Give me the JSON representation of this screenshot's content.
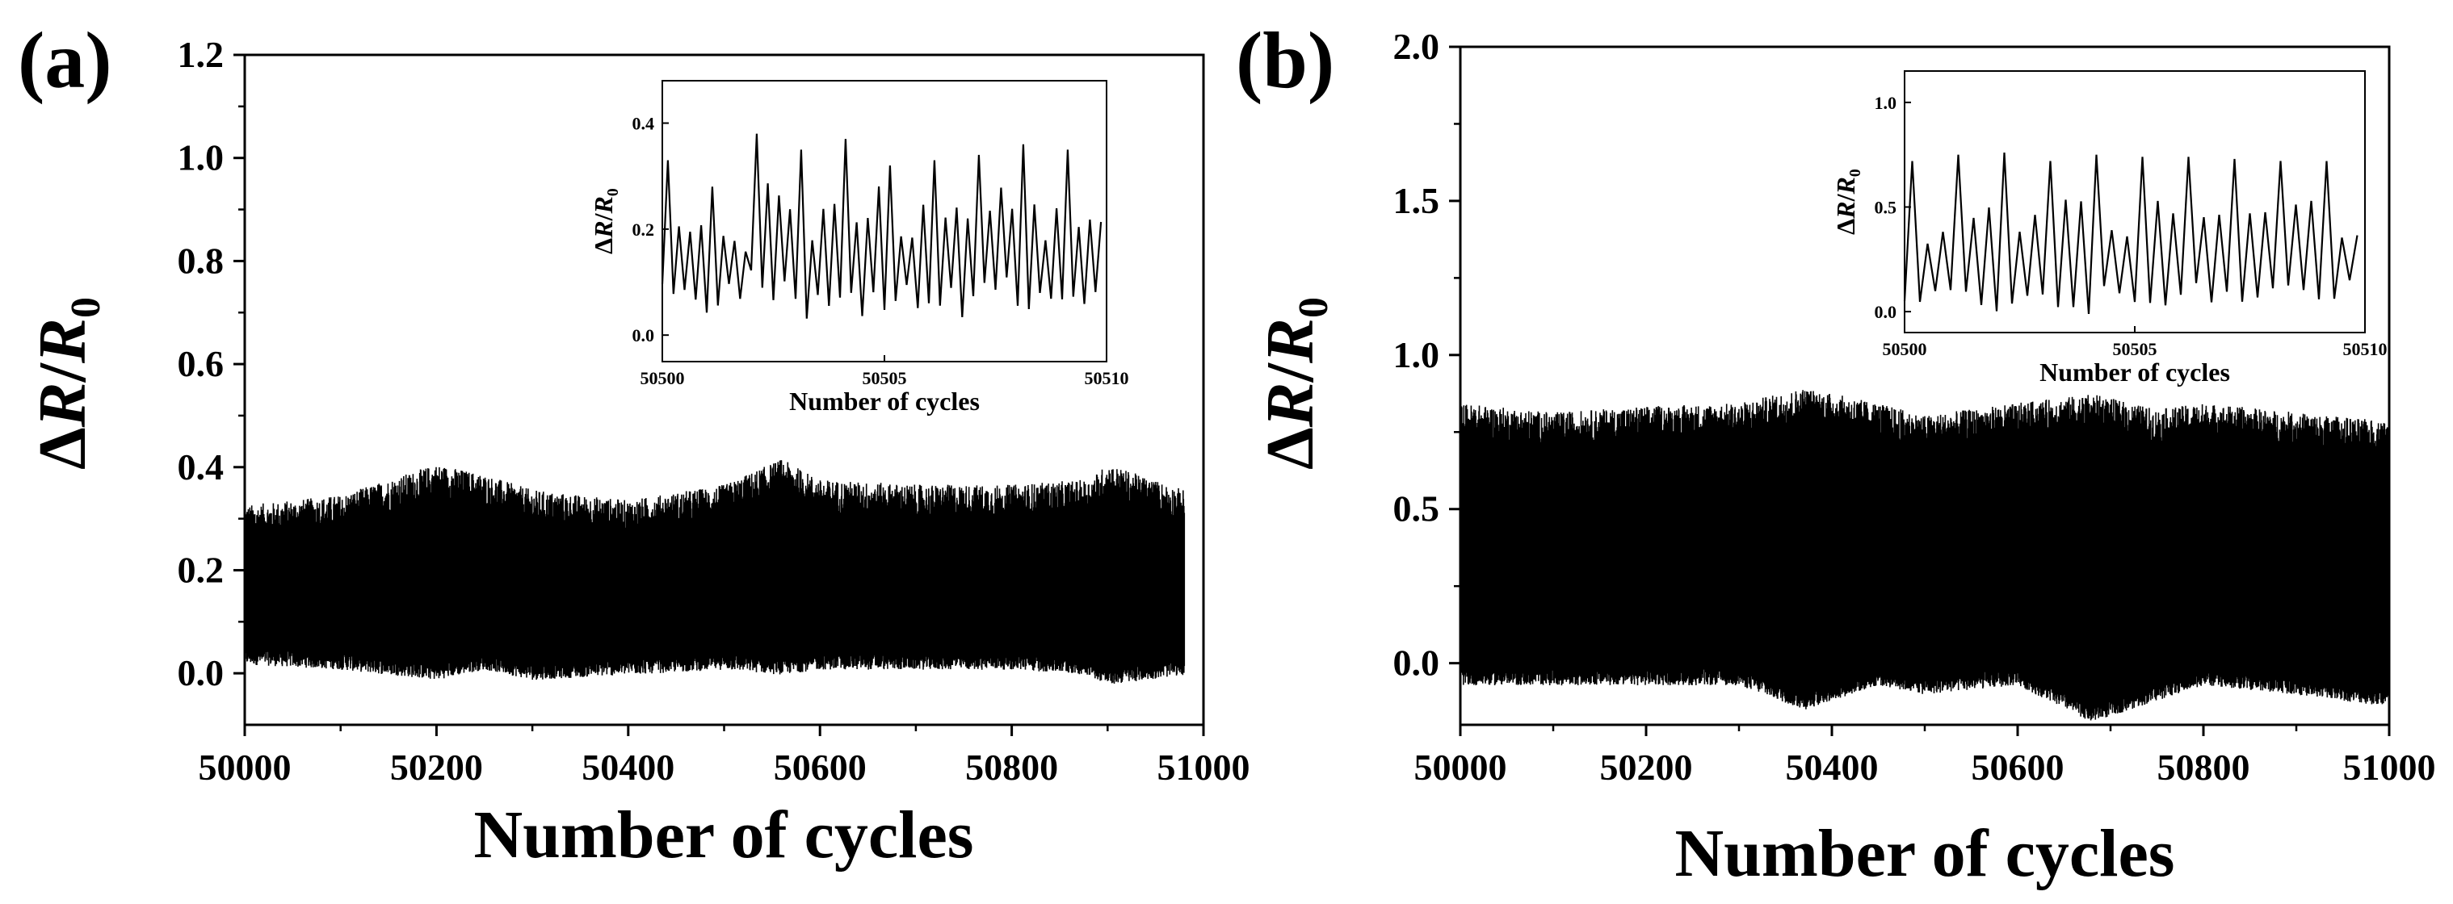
{
  "colors": {
    "trace": "#000000",
    "axis": "#000000",
    "background": "#ffffff"
  },
  "chart_data": [
    {
      "type": "line",
      "panel_label": "(a)",
      "xlabel": "Number of cycles",
      "ylabel": {
        "delta": "Δ",
        "r": "R",
        "slash": "/",
        "r0": "R",
        "sub": "0"
      },
      "xlim": [
        50000,
        51000
      ],
      "ylim": [
        -0.1,
        1.2
      ],
      "xticks": [
        "50000",
        "50200",
        "50400",
        "50600",
        "50800",
        "51000"
      ],
      "yticks": [
        "0.0",
        "0.2",
        "0.4",
        "0.6",
        "0.8",
        "1.0",
        "1.2"
      ],
      "series": [
        {
          "name": "ΔR/R0",
          "x_end": 50980,
          "envelope_x": [
            50000,
            50100,
            50200,
            50250,
            50300,
            50400,
            50500,
            50560,
            50600,
            50700,
            50800,
            50880,
            50900,
            50980
          ],
          "upper": [
            0.3,
            0.32,
            0.38,
            0.36,
            0.33,
            0.31,
            0.34,
            0.39,
            0.35,
            0.34,
            0.34,
            0.35,
            0.38,
            0.33
          ],
          "lower": [
            0.03,
            0.02,
            0.0,
            0.02,
            0.0,
            0.01,
            0.02,
            0.01,
            0.02,
            0.02,
            0.02,
            0.01,
            -0.01,
            0.01
          ]
        }
      ],
      "inset": {
        "xlabel": "Number of cycles",
        "ylabel": {
          "delta": "Δ",
          "r": "R",
          "slash": "/",
          "r0": "R",
          "sub": "0"
        },
        "xlim": [
          50500,
          50510
        ],
        "ylim": [
          -0.05,
          0.48
        ],
        "xticks": [
          "50500",
          "50505",
          "50510"
        ],
        "yticks": [
          "0.0",
          "0.2",
          "0.4"
        ],
        "peaks_per_cycle": 3,
        "cycle_max": [
          0.33,
          0.28,
          0.38,
          0.35,
          0.37,
          0.32,
          0.33,
          0.34,
          0.36,
          0.35
        ],
        "cycle_min": [
          0.05,
          0.04,
          0.06,
          0.03,
          0.02,
          0.04,
          0.03,
          0.05,
          0.02,
          0.02
        ]
      }
    },
    {
      "type": "line",
      "panel_label": "(b)",
      "xlabel": "Number of cycles",
      "ylabel": {
        "delta": "Δ",
        "r": "R",
        "slash": "/",
        "r0": "R",
        "sub": "0"
      },
      "xlim": [
        50000,
        51000
      ],
      "ylim": [
        -0.2,
        2.0
      ],
      "xticks": [
        "50000",
        "50200",
        "50400",
        "50600",
        "50800",
        "51000"
      ],
      "yticks": [
        "0.0",
        "0.5",
        "1.0",
        "1.5",
        "2.0"
      ],
      "series": [
        {
          "name": "ΔR/R0",
          "x_end": 51000,
          "envelope_x": [
            50000,
            50100,
            50200,
            50300,
            50370,
            50450,
            50500,
            50600,
            50680,
            50750,
            50800,
            50900,
            51000
          ],
          "upper": [
            0.8,
            0.77,
            0.79,
            0.8,
            0.85,
            0.8,
            0.76,
            0.8,
            0.83,
            0.78,
            0.8,
            0.77,
            0.74
          ],
          "lower": [
            -0.05,
            -0.05,
            -0.05,
            -0.05,
            -0.13,
            -0.05,
            -0.08,
            -0.05,
            -0.17,
            -0.1,
            -0.05,
            -0.08,
            -0.12
          ]
        }
      ],
      "inset": {
        "xlabel": "Number of cycles",
        "ylabel": {
          "delta": "Δ",
          "r": "R",
          "slash": "/",
          "r0": "R",
          "sub": "0"
        },
        "xlim": [
          50500,
          50510
        ],
        "ylim": [
          -0.1,
          1.15
        ],
        "xticks": [
          "50500",
          "50505",
          "50510"
        ],
        "yticks": [
          "0.0",
          "0.5",
          "1.0"
        ],
        "peaks_per_cycle": 2,
        "cycle_max": [
          0.72,
          0.75,
          0.76,
          0.72,
          0.75,
          0.74,
          0.74,
          0.73,
          0.72,
          0.72
        ],
        "cycle_min": [
          0.0,
          -0.02,
          -0.03,
          0.0,
          -0.02,
          -0.03,
          0.0,
          -0.02,
          0.0,
          0.0
        ]
      }
    }
  ]
}
